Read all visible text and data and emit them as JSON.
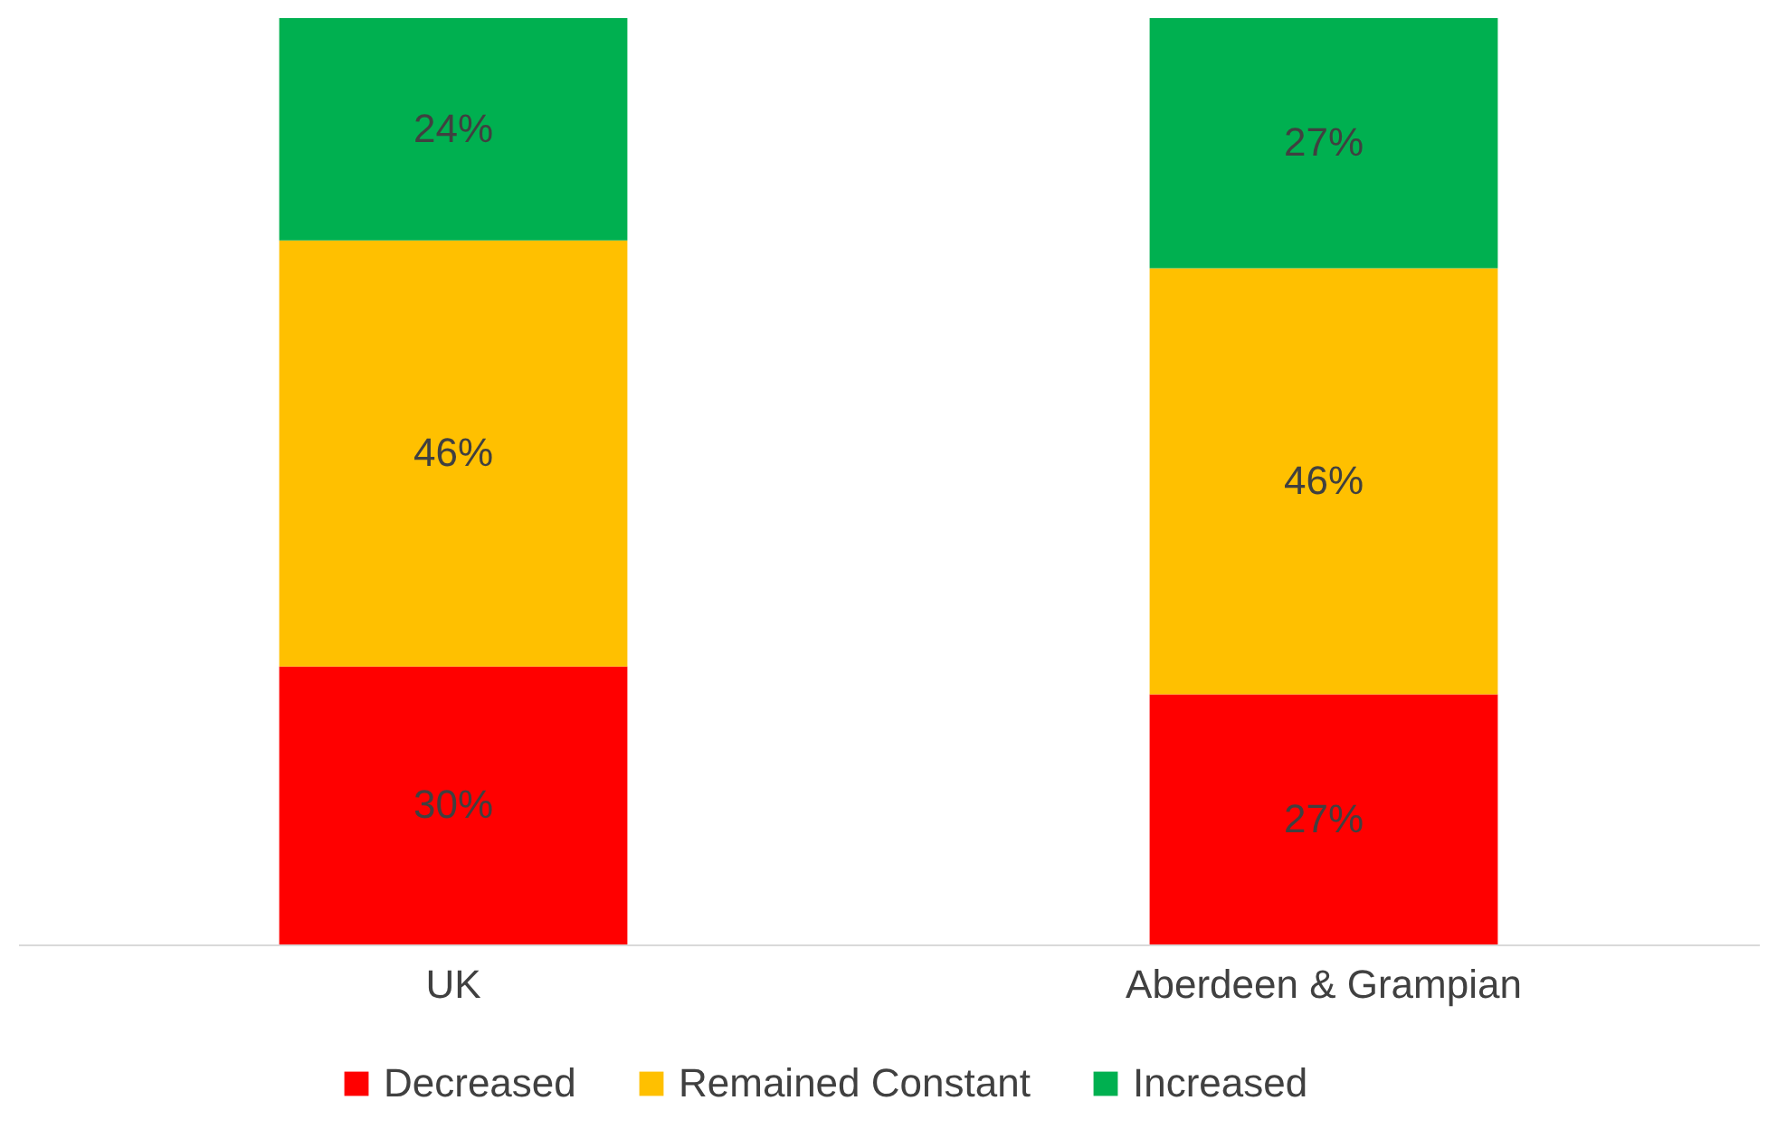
{
  "chart_data": {
    "type": "bar",
    "stacked": true,
    "categories": [
      "UK",
      "Aberdeen & Grampian"
    ],
    "series": [
      {
        "name": "Decreased",
        "color": "#ff0000",
        "values": [
          30,
          27
        ],
        "value_labels": [
          "30%",
          "27%"
        ]
      },
      {
        "name": "Remained Constant",
        "color": "#ffc000",
        "values": [
          46,
          46
        ],
        "value_labels": [
          "46%",
          "46%"
        ]
      },
      {
        "name": "Increased",
        "color": "#00b050",
        "values": [
          24,
          27
        ],
        "value_labels": [
          "24%",
          "27%"
        ]
      }
    ],
    "ylim": [
      0,
      100
    ],
    "legend": "bottom"
  }
}
